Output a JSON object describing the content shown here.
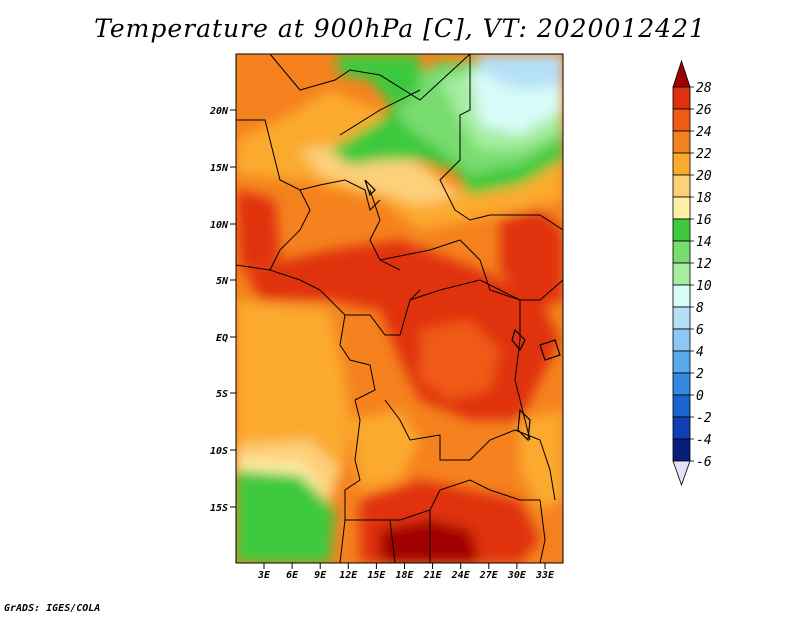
{
  "title": "Temperature at 900hPa [C], VT: 2020012421",
  "credit": "GrADS: IGES/COLA",
  "lat_labels": [
    "20N",
    "15N",
    "10N",
    "5N",
    "EQ",
    "5S",
    "10S",
    "15S"
  ],
  "lon_labels": [
    "3E",
    "6E",
    "9E",
    "12E",
    "15E",
    "18E",
    "21E",
    "24E",
    "27E",
    "30E",
    "33E"
  ],
  "colorbar": {
    "labels": [
      "28",
      "26",
      "24",
      "22",
      "20",
      "18",
      "16",
      "14",
      "12",
      "10",
      "8",
      "6",
      "4",
      "2",
      "0",
      "-2",
      "-4",
      "-6"
    ],
    "colors": [
      "#a00000",
      "#e03010",
      "#f05a14",
      "#f5821e",
      "#fbaa2d",
      "#fdd07a",
      "#fff0a8",
      "#3ec93e",
      "#78dc6e",
      "#a6eda0",
      "#d8fbf8",
      "#b6e0f8",
      "#8dc7f5",
      "#5aa8ec",
      "#3288e2",
      "#1a64cf",
      "#0e40b4",
      "#0a1d7a",
      "#060a50"
    ]
  },
  "map": {
    "extent": {
      "lon": [
        0,
        35
      ],
      "lat": [
        -20,
        24
      ]
    },
    "projection": "latlon"
  }
}
